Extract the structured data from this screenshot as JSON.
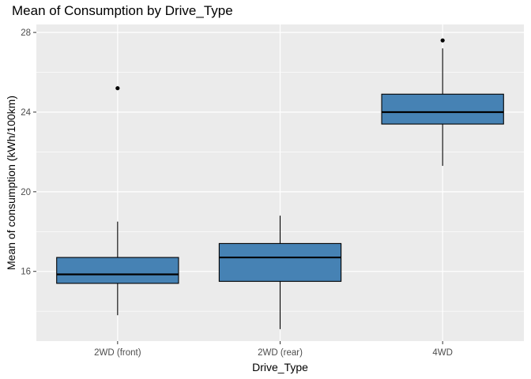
{
  "chart_data": {
    "type": "boxplot",
    "title": "Mean of Consumption by Drive_Type",
    "xlabel": "Drive_Type",
    "ylabel": "Mean of consumption (kWh/100km)",
    "ylim": [
      12.5,
      28.4
    ],
    "y_ticks": [
      16,
      20,
      24,
      28
    ],
    "y_tick_labels": [
      "16",
      "20",
      "24",
      "28"
    ],
    "grid": true,
    "fill_color": "#4682B4",
    "panel_color": "#EBEBEB",
    "categories": [
      "2WD (front)",
      "2WD (rear)",
      "4WD"
    ],
    "boxes": [
      {
        "category": "2WD (front)",
        "whisker_low": 13.8,
        "q1": 15.4,
        "median": 15.85,
        "q3": 16.7,
        "whisker_high": 18.5,
        "outliers": [
          25.2
        ]
      },
      {
        "category": "2WD (rear)",
        "whisker_low": 13.1,
        "q1": 15.5,
        "median": 16.7,
        "q3": 17.4,
        "whisker_high": 18.8,
        "outliers": []
      },
      {
        "category": "4WD",
        "whisker_low": 21.3,
        "q1": 23.4,
        "median": 24.0,
        "q3": 24.9,
        "whisker_high": 27.2,
        "outliers": [
          27.6
        ]
      }
    ]
  }
}
